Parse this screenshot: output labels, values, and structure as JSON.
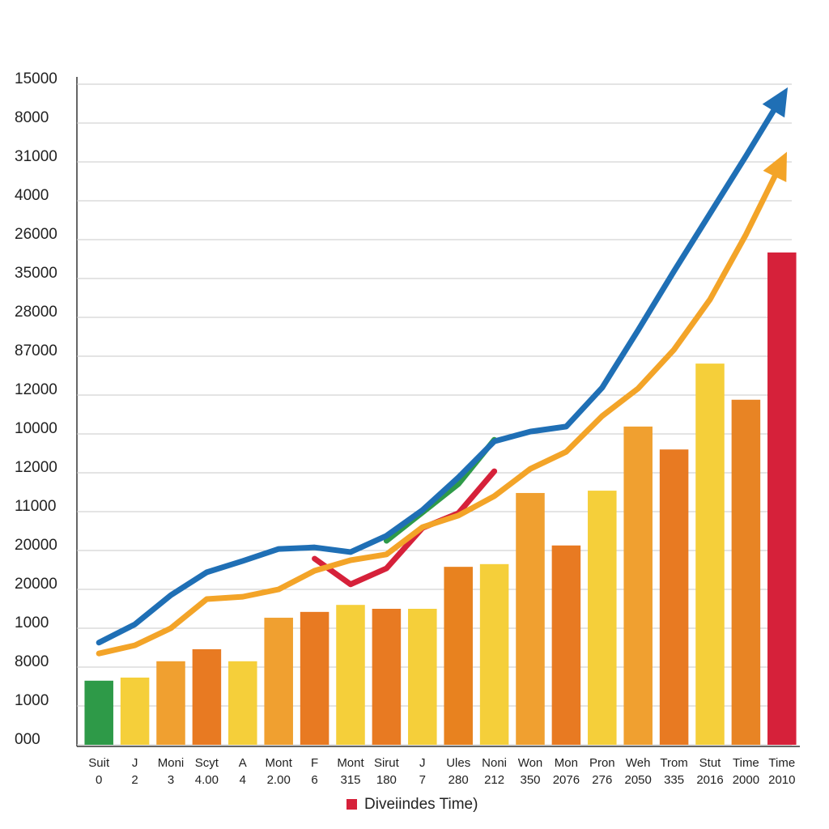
{
  "chart_data": {
    "type": "bar",
    "categories": [
      [
        "Suit",
        "0"
      ],
      [
        "J",
        "2"
      ],
      [
        "Moni",
        "3"
      ],
      [
        "Scyt",
        "4.00"
      ],
      [
        "A",
        "4"
      ],
      [
        "Mont",
        "2.00"
      ],
      [
        "F",
        "6"
      ],
      [
        "Mont",
        "315"
      ],
      [
        "Sirut",
        "180"
      ],
      [
        "J",
        "7"
      ],
      [
        "Ules",
        "280"
      ],
      [
        "Noni",
        "212"
      ],
      [
        "Won",
        "350"
      ],
      [
        "Mon",
        "2076"
      ],
      [
        "Pron",
        "276"
      ],
      [
        "Weh",
        "2050"
      ],
      [
        "Trom",
        "335"
      ],
      [
        "Stut",
        "2016"
      ],
      [
        "Time",
        "2000"
      ],
      [
        "Time",
        "2010"
      ]
    ],
    "values": [
      1.65,
      1.73,
      2.15,
      2.46,
      2.15,
      3.27,
      3.42,
      3.6,
      3.5,
      3.5,
      4.58,
      4.65,
      6.48,
      5.13,
      6.54,
      8.19,
      7.6,
      9.81,
      8.88,
      12.67
    ],
    "colors": [
      "#2e9a48",
      "#f5cf3a",
      "#f0a030",
      "#e87a22",
      "#f5cf3a",
      "#f0a030",
      "#e87a22",
      "#f5cf3a",
      "#e87a22",
      "#f5cf3a",
      "#e8821f",
      "#f5cf3a",
      "#f0a030",
      "#e87a22",
      "#f5cf3a",
      "#f0a030",
      "#e87a22",
      "#f5cf3a",
      "#e88424",
      "#d6213a"
    ],
    "series": [
      {
        "color": "#1f6fb5",
        "arrow": true,
        "values": [
          2.63,
          3.1,
          3.85,
          4.44,
          4.73,
          5.04,
          5.08,
          4.96,
          5.38,
          6.04,
          6.88,
          7.81,
          8.06,
          8.19,
          9.19,
          10.67,
          12.19,
          13.67,
          15.15,
          16.67
        ]
      },
      {
        "color": "#f3a428",
        "arrow": true,
        "values": [
          2.35,
          2.56,
          3.0,
          3.75,
          3.81,
          4.0,
          4.48,
          4.75,
          4.9,
          5.6,
          5.9,
          6.4,
          7.1,
          7.54,
          8.46,
          9.17,
          10.17,
          11.46,
          13.13,
          15.0
        ]
      },
      {
        "color": "#d6213a",
        "arrow": false,
        "values": [
          null,
          null,
          null,
          null,
          null,
          null,
          4.79,
          4.13,
          4.54,
          5.58,
          5.96,
          7.04,
          null,
          null,
          null,
          null,
          null,
          null,
          null,
          null
        ]
      },
      {
        "color": "#2e9a48",
        "arrow": false,
        "values": [
          null,
          null,
          null,
          null,
          null,
          null,
          null,
          null,
          5.25,
          5.98,
          6.71,
          7.85,
          null,
          null,
          null,
          null,
          null,
          null,
          null,
          null
        ]
      }
    ],
    "ylim": [
      0,
      17
    ],
    "yticks": [
      {
        "value": 0,
        "label": "000"
      },
      {
        "value": 1,
        "label": "1000"
      },
      {
        "value": 2,
        "label": "8000"
      },
      {
        "value": 3,
        "label": "1000"
      },
      {
        "value": 4,
        "label": "20000"
      },
      {
        "value": 5,
        "label": "20000"
      },
      {
        "value": 6,
        "label": "11000"
      },
      {
        "value": 7,
        "label": "12000"
      },
      {
        "value": 8,
        "label": "10000"
      },
      {
        "value": 9,
        "label": "12000"
      },
      {
        "value": 10,
        "label": "87000"
      },
      {
        "value": 11,
        "label": "28000"
      },
      {
        "value": 12,
        "label": "35000"
      },
      {
        "value": 13,
        "label": "26000"
      },
      {
        "value": 14,
        "label": "4000"
      },
      {
        "value": 15,
        "label": "31000"
      },
      {
        "value": 16,
        "label": "8000"
      },
      {
        "value": 17,
        "label": "15000"
      }
    ],
    "grid": true,
    "legend": {
      "label": "Diveiindes Time)",
      "color": "#d6213a"
    }
  }
}
